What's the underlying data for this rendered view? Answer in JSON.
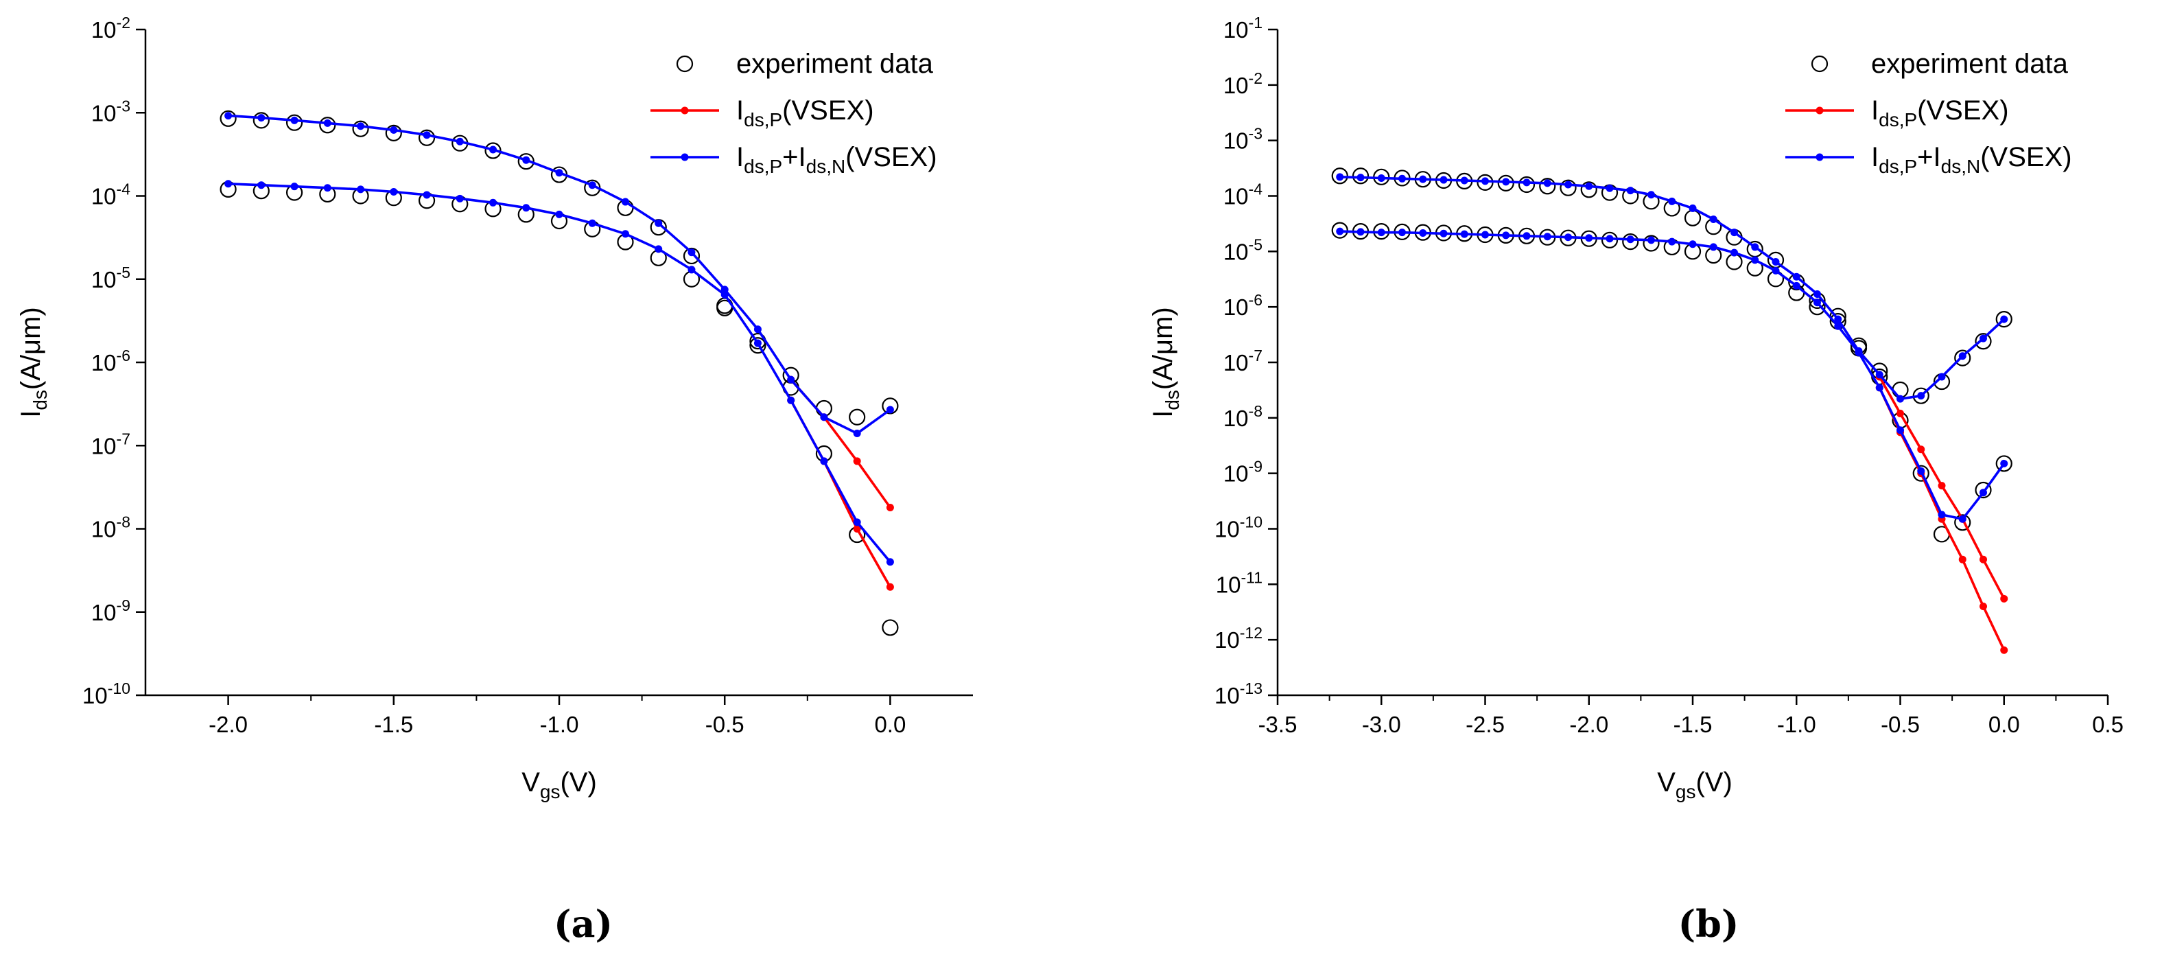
{
  "chart_data": [
    {
      "type": "line",
      "panel_label": "(a)",
      "xlabel": {
        "main": "V",
        "sub": "gs",
        "rest": "(V)"
      },
      "ylabel": {
        "main": "I",
        "sub": "ds",
        "rest": "(A/μm)"
      },
      "xlim": [
        -2.25,
        0.25
      ],
      "xticks": [
        -2.0,
        -1.5,
        -1.0,
        -0.5,
        0.0
      ],
      "xtick_labels": [
        "-2.0",
        "-1.5",
        "-1.0",
        "-0.5",
        "0.0"
      ],
      "yscale": "log",
      "ylim_exp": [
        -10,
        -2
      ],
      "yticks_exp": [
        -10,
        -9,
        -8,
        -7,
        -6,
        -5,
        -4,
        -3,
        -2
      ],
      "legend": {
        "position": "top-right",
        "entries": [
          {
            "kind": "circle",
            "color": "#000000",
            "parts": [
              {
                "t": "experiment data"
              }
            ]
          },
          {
            "kind": "line",
            "color": "#ff0000",
            "parts": [
              {
                "t": "I"
              },
              {
                "t": "ds,P",
                "sub": true
              },
              {
                "t": "(VSEX)"
              }
            ]
          },
          {
            "kind": "line",
            "color": "#0000ff",
            "parts": [
              {
                "t": "I"
              },
              {
                "t": "ds,P",
                "sub": true
              },
              {
                "t": "+I"
              },
              {
                "t": "ds,N",
                "sub": true
              },
              {
                "t": "(VSEX)"
              }
            ]
          }
        ]
      },
      "series": [
        {
          "name": "experiment data (upper)",
          "kind": "markers",
          "color": "#000000",
          "x": [
            -2.0,
            -1.9,
            -1.8,
            -1.7,
            -1.6,
            -1.5,
            -1.4,
            -1.3,
            -1.2,
            -1.1,
            -1.0,
            -0.9,
            -0.8,
            -0.7,
            -0.6,
            -0.5,
            -0.4,
            -0.3,
            -0.2,
            -0.1,
            0.0
          ],
          "y": [
            0.00085,
            0.00081,
            0.00076,
            0.00071,
            0.00064,
            0.00057,
            0.0005,
            0.00043,
            0.00035,
            0.00026,
            0.00018,
            0.000125,
            7.2e-05,
            4.2e-05,
            1.9e-05,
            4.8e-06,
            1.6e-06,
            7e-07,
            2.8e-07,
            2.2e-07,
            3e-07
          ]
        },
        {
          "name": "experiment data (lower)",
          "kind": "markers",
          "color": "#000000",
          "x": [
            -2.0,
            -1.9,
            -1.8,
            -1.7,
            -1.6,
            -1.5,
            -1.4,
            -1.3,
            -1.2,
            -1.1,
            -1.0,
            -0.9,
            -0.8,
            -0.7,
            -0.6,
            -0.5,
            -0.4,
            -0.3,
            -0.2,
            -0.1,
            0.0
          ],
          "y": [
            0.00012,
            0.000115,
            0.00011,
            0.000105,
            0.0001,
            9.5e-05,
            8.8e-05,
            8e-05,
            7e-05,
            6e-05,
            5e-05,
            4e-05,
            2.8e-05,
            1.8e-05,
            1e-05,
            4.5e-06,
            1.8e-06,
            5e-07,
            8e-08,
            8.5e-09,
            6.5e-10
          ]
        },
        {
          "name": "Ids,P(VSEX) (upper)",
          "kind": "line",
          "color": "#ff0000",
          "x": [
            -0.3,
            -0.2,
            -0.1,
            0.0
          ],
          "y": [
            6.2e-07,
            2.2e-07,
            6.5e-08,
            1.8e-08
          ]
        },
        {
          "name": "Ids,P(VSEX) (lower)",
          "kind": "line",
          "color": "#ff0000",
          "x": [
            -0.3,
            -0.2,
            -0.1,
            0.0
          ],
          "y": [
            3.5e-07,
            6.5e-08,
            1e-08,
            2e-09
          ]
        },
        {
          "name": "Ids,P+Ids,N(VSEX) (upper)",
          "kind": "line",
          "color": "#0000ff",
          "x": [
            -2.0,
            -1.9,
            -1.8,
            -1.7,
            -1.6,
            -1.5,
            -1.4,
            -1.3,
            -1.2,
            -1.1,
            -1.0,
            -0.9,
            -0.8,
            -0.7,
            -0.6,
            -0.5,
            -0.4,
            -0.3,
            -0.2,
            -0.1,
            0.0
          ],
          "y": [
            0.00092,
            0.00087,
            0.00081,
            0.00075,
            0.00069,
            0.00062,
            0.00054,
            0.00045,
            0.00036,
            0.00027,
            0.00019,
            0.000135,
            8.5e-05,
            4.7e-05,
            2.1e-05,
            7.5e-06,
            2.5e-06,
            6.2e-07,
            2.2e-07,
            1.4e-07,
            2.7e-07
          ]
        },
        {
          "name": "Ids,P+Ids,N(VSEX) (lower)",
          "kind": "line",
          "color": "#0000ff",
          "x": [
            -2.0,
            -1.9,
            -1.8,
            -1.7,
            -1.6,
            -1.5,
            -1.4,
            -1.3,
            -1.2,
            -1.1,
            -1.0,
            -0.9,
            -0.8,
            -0.7,
            -0.6,
            -0.5,
            -0.4,
            -0.3,
            -0.2,
            -0.1,
            0.0
          ],
          "y": [
            0.00014,
            0.000135,
            0.00013,
            0.000125,
            0.00012,
            0.000112,
            0.000103,
            9.3e-05,
            8.3e-05,
            7.2e-05,
            6e-05,
            4.7e-05,
            3.5e-05,
            2.3e-05,
            1.3e-05,
            6.5e-06,
            1.7e-06,
            3.5e-07,
            6.5e-08,
            1.2e-08,
            4e-09
          ]
        }
      ]
    },
    {
      "type": "line",
      "panel_label": "(b)",
      "xlabel": {
        "main": "V",
        "sub": "gs",
        "rest": "(V)"
      },
      "ylabel": {
        "main": "I",
        "sub": "ds",
        "rest": "(A/μm)"
      },
      "xlim": [
        -3.5,
        0.5
      ],
      "xticks": [
        -3.5,
        -3.0,
        -2.5,
        -2.0,
        -1.5,
        -1.0,
        -0.5,
        0.0,
        0.5
      ],
      "xtick_labels": [
        "-3.5",
        "-3.0",
        "-2.5",
        "-2.0",
        "-1.5",
        "-1.0",
        "-0.5",
        "0.0",
        "0.5"
      ],
      "yscale": "log",
      "ylim_exp": [
        -13,
        -1
      ],
      "yticks_exp": [
        -13,
        -12,
        -11,
        -10,
        -9,
        -8,
        -7,
        -6,
        -5,
        -4,
        -3,
        -2,
        -1
      ],
      "legend": {
        "position": "top-right",
        "entries": [
          {
            "kind": "circle",
            "color": "#000000",
            "parts": [
              {
                "t": "experiment data"
              }
            ]
          },
          {
            "kind": "line",
            "color": "#ff0000",
            "parts": [
              {
                "t": "I"
              },
              {
                "t": "ds,P",
                "sub": true
              },
              {
                "t": "(VSEX)"
              }
            ]
          },
          {
            "kind": "line",
            "color": "#0000ff",
            "parts": [
              {
                "t": "I"
              },
              {
                "t": "ds,P",
                "sub": true
              },
              {
                "t": "+I"
              },
              {
                "t": "ds,N",
                "sub": true
              },
              {
                "t": "(VSEX)"
              }
            ]
          }
        ]
      },
      "series": [
        {
          "name": "experiment data (upper)",
          "kind": "markers",
          "color": "#000000",
          "x": [
            -3.2,
            -3.1,
            -3.0,
            -2.9,
            -2.8,
            -2.7,
            -2.6,
            -2.5,
            -2.4,
            -2.3,
            -2.2,
            -2.1,
            -2.0,
            -1.9,
            -1.8,
            -1.7,
            -1.6,
            -1.5,
            -1.4,
            -1.3,
            -1.2,
            -1.1,
            -1.0,
            -0.9,
            -0.8,
            -0.7,
            -0.6,
            -0.5,
            -0.4,
            -0.3,
            -0.2,
            -0.1,
            0.0
          ],
          "y": [
            0.00023,
            0.00023,
            0.00022,
            0.00021,
            0.0002,
            0.00019,
            0.000185,
            0.000175,
            0.00017,
            0.00016,
            0.00015,
            0.00014,
            0.00013,
            0.000115,
            0.0001,
            8e-05,
            6e-05,
            4e-05,
            2.8e-05,
            1.8e-05,
            1.1e-05,
            7e-06,
            2.8e-06,
            1.3e-06,
            6.8e-07,
            2e-07,
            7e-08,
            3.2e-08,
            2.5e-08,
            4.5e-08,
            1.2e-07,
            2.4e-07,
            6e-07
          ]
        },
        {
          "name": "experiment data (lower)",
          "kind": "markers",
          "color": "#000000",
          "x": [
            -3.2,
            -3.1,
            -3.0,
            -2.9,
            -2.8,
            -2.7,
            -2.6,
            -2.5,
            -2.4,
            -2.3,
            -2.2,
            -2.1,
            -2.0,
            -1.9,
            -1.8,
            -1.7,
            -1.6,
            -1.5,
            -1.4,
            -1.3,
            -1.2,
            -1.1,
            -1.0,
            -0.9,
            -0.8,
            -0.7,
            -0.6,
            -0.5,
            -0.4,
            -0.3,
            -0.2,
            -0.1,
            0.0
          ],
          "y": [
            2.4e-05,
            2.3e-05,
            2.3e-05,
            2.25e-05,
            2.2e-05,
            2.15e-05,
            2.1e-05,
            2e-05,
            1.95e-05,
            1.9e-05,
            1.8e-05,
            1.75e-05,
            1.7e-05,
            1.6e-05,
            1.5e-05,
            1.4e-05,
            1.2e-05,
            1e-05,
            8.5e-06,
            6.5e-06,
            5e-06,
            3.2e-06,
            1.8e-06,
            1e-06,
            5.5e-07,
            1.8e-07,
            5.5e-08,
            9e-09,
            1e-09,
            8e-11,
            1.3e-10,
            5e-10,
            1.5e-09
          ]
        },
        {
          "name": "Ids,P(VSEX) (upper)",
          "kind": "line",
          "color": "#ff0000",
          "x": [
            -0.6,
            -0.5,
            -0.4,
            -0.3,
            -0.2,
            -0.1,
            0.0
          ],
          "y": [
            5.5e-08,
            1.2e-08,
            2.7e-09,
            6e-10,
            1.5e-10,
            2.8e-11,
            5.5e-12
          ]
        },
        {
          "name": "Ids,P(VSEX) (lower)",
          "kind": "line",
          "color": "#ff0000",
          "x": [
            -0.6,
            -0.5,
            -0.4,
            -0.3,
            -0.2,
            -0.1,
            0.0
          ],
          "y": [
            3.5e-08,
            5.5e-09,
            1e-09,
            1.5e-10,
            2.8e-11,
            4e-12,
            6.5e-13
          ]
        },
        {
          "name": "Ids,P+Ids,N(VSEX) (upper)",
          "kind": "line",
          "color": "#0000ff",
          "x": [
            -3.2,
            -3.1,
            -3.0,
            -2.9,
            -2.8,
            -2.7,
            -2.6,
            -2.5,
            -2.4,
            -2.3,
            -2.2,
            -2.1,
            -2.0,
            -1.9,
            -1.8,
            -1.7,
            -1.6,
            -1.5,
            -1.4,
            -1.3,
            -1.2,
            -1.1,
            -1.0,
            -0.9,
            -0.8,
            -0.7,
            -0.6,
            -0.5,
            -0.4,
            -0.3,
            -0.2,
            -0.1,
            0.0
          ],
          "y": [
            0.00022,
            0.000215,
            0.00021,
            0.000205,
            0.0002,
            0.000195,
            0.00019,
            0.000185,
            0.00018,
            0.000175,
            0.00017,
            0.00016,
            0.00015,
            0.000138,
            0.000125,
            0.000105,
            8e-05,
            6e-05,
            3.8e-05,
            2.2e-05,
            1.2e-05,
            6.5e-06,
            3.5e-06,
            1.7e-06,
            6e-07,
            1.6e-07,
            6e-08,
            2.2e-08,
            2.5e-08,
            5.5e-08,
            1.3e-07,
            2.7e-07,
            6e-07
          ]
        },
        {
          "name": "Ids,P+Ids,N(VSEX) (lower)",
          "kind": "line",
          "color": "#0000ff",
          "x": [
            -3.2,
            -3.1,
            -3.0,
            -2.9,
            -2.8,
            -2.7,
            -2.6,
            -2.5,
            -2.4,
            -2.3,
            -2.2,
            -2.1,
            -2.0,
            -1.9,
            -1.8,
            -1.7,
            -1.6,
            -1.5,
            -1.4,
            -1.3,
            -1.2,
            -1.1,
            -1.0,
            -0.9,
            -0.8,
            -0.7,
            -0.6,
            -0.5,
            -0.4,
            -0.3,
            -0.2,
            -0.1,
            0.0
          ],
          "y": [
            2.3e-05,
            2.25e-05,
            2.2e-05,
            2.2e-05,
            2.15e-05,
            2.1e-05,
            2.05e-05,
            2e-05,
            1.95e-05,
            1.9e-05,
            1.85e-05,
            1.8e-05,
            1.75e-05,
            1.7e-05,
            1.65e-05,
            1.6e-05,
            1.5e-05,
            1.35e-05,
            1.2e-05,
            9.5e-06,
            7e-06,
            4.5e-06,
            2.4e-06,
            1.2e-06,
            4.5e-07,
            1.5e-07,
            3.5e-08,
            6e-09,
            1.1e-09,
            1.8e-10,
            1.5e-10,
            4.5e-10,
            1.5e-09
          ]
        }
      ]
    }
  ]
}
